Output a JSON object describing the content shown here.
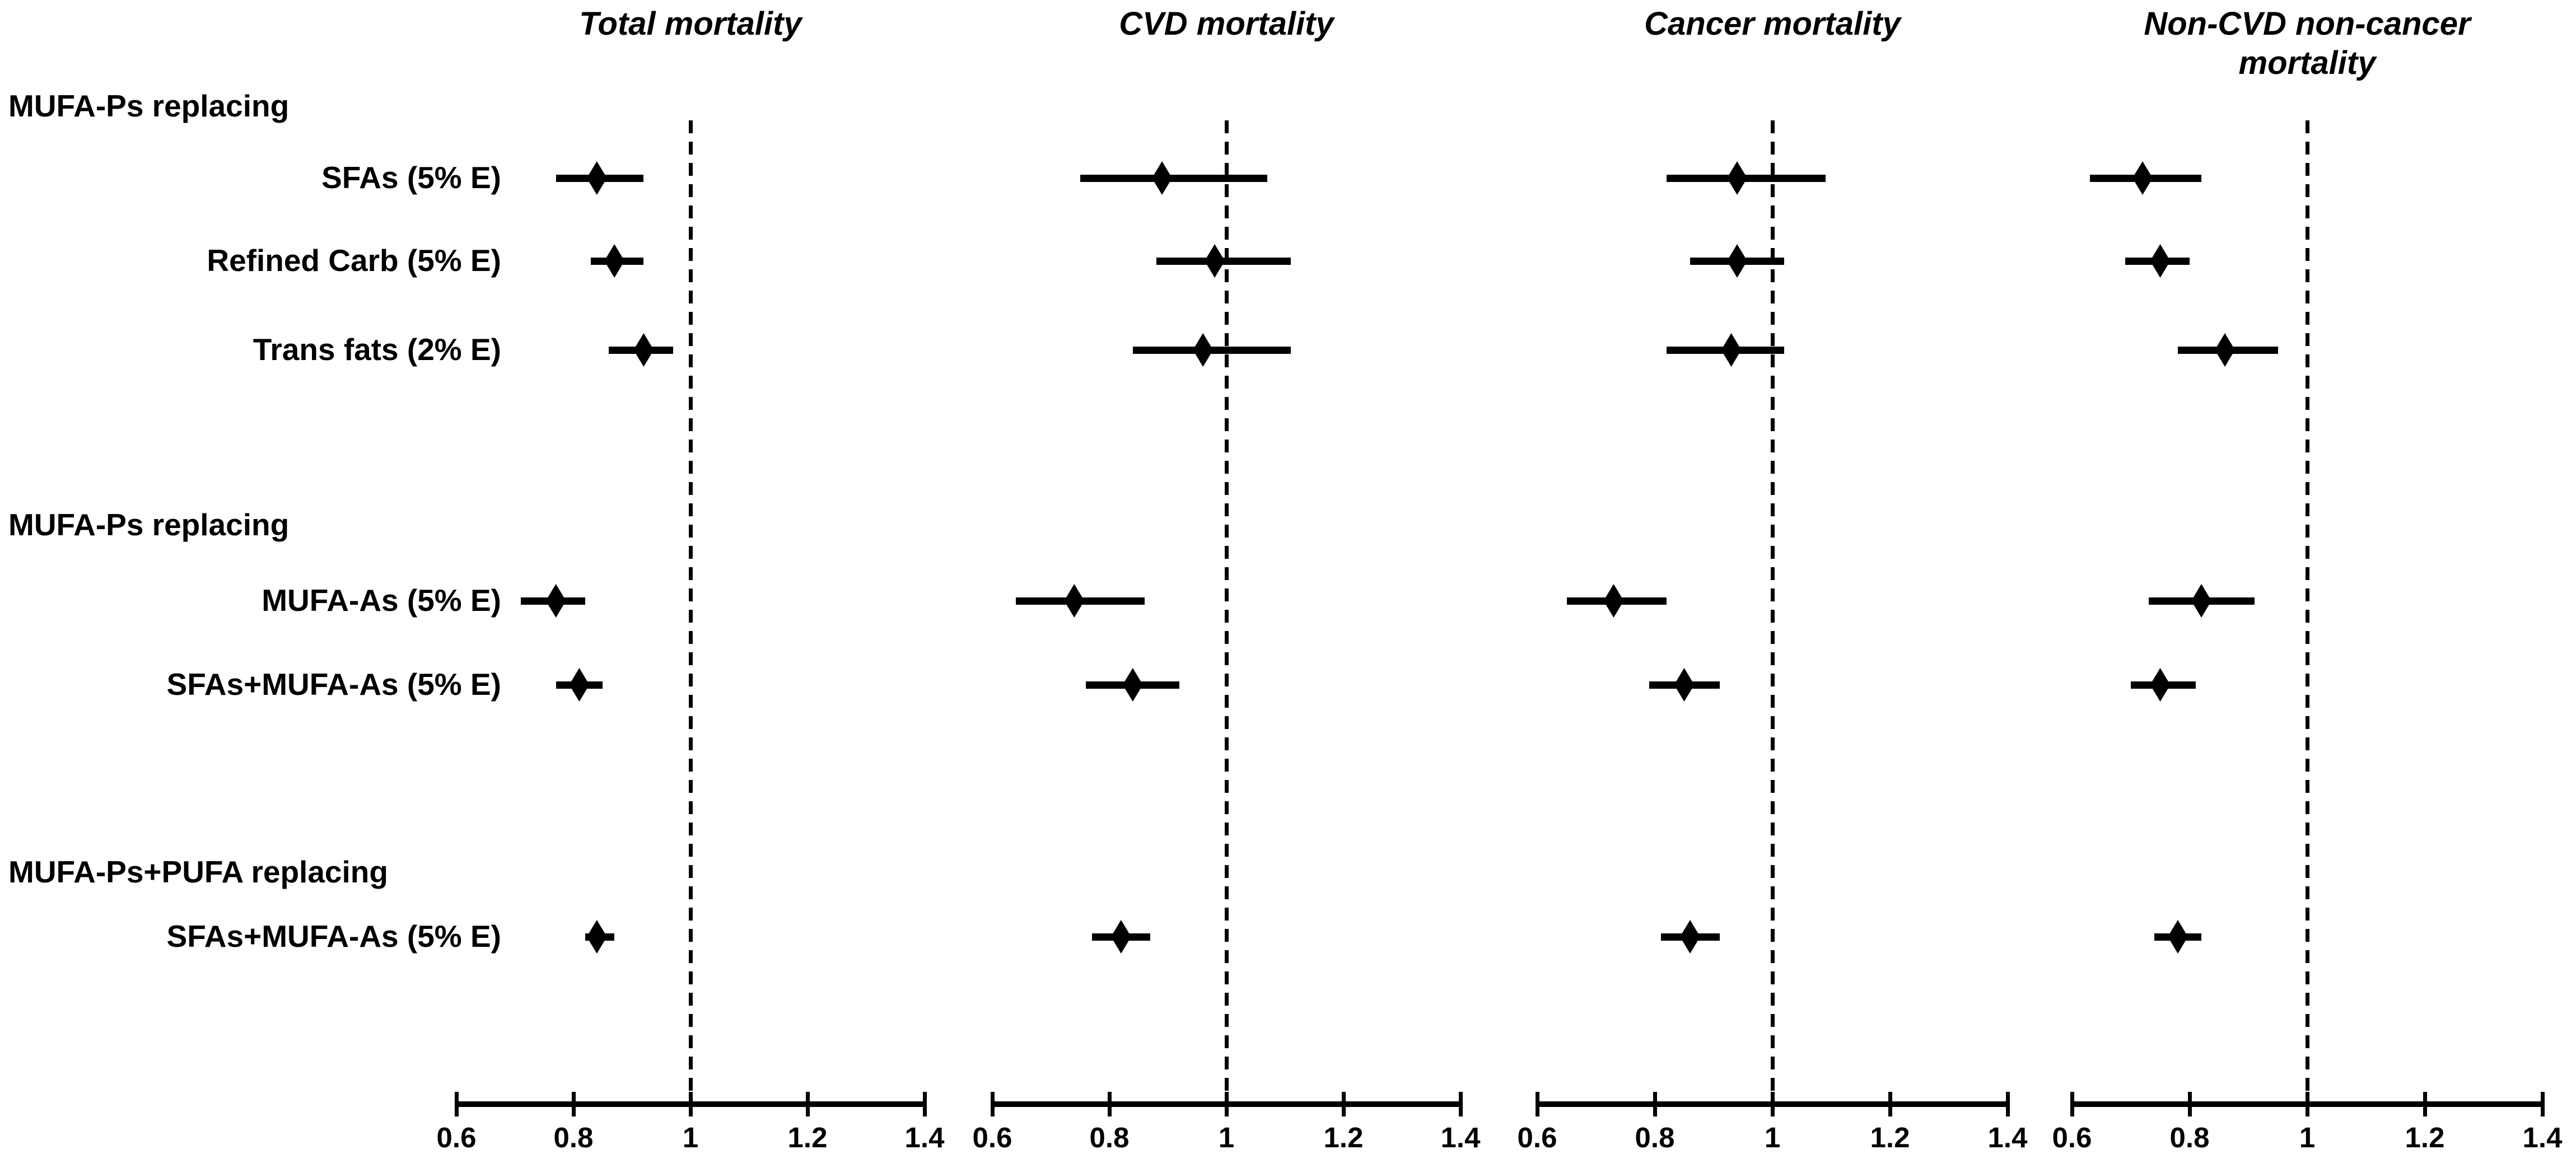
{
  "colors": {
    "foreground": "#000000",
    "background": "#ffffff"
  },
  "chart_data": {
    "type": "forest",
    "x_axis": {
      "min": 0.6,
      "max": 1.4,
      "tick_values": [
        0.6,
        0.8,
        1,
        1.2,
        1.4
      ],
      "tick_labels": [
        "0.6",
        "0.8",
        "1",
        "1.2",
        "1.4"
      ],
      "reference_line": 1,
      "grid": false
    },
    "panels": [
      {
        "key": "total",
        "title": "Total mortality"
      },
      {
        "key": "cvd",
        "title": "CVD mortality"
      },
      {
        "key": "cancer",
        "title": "Cancer mortality"
      },
      {
        "key": "noncvd",
        "title": "Non-CVD non-cancer\nmortality"
      }
    ],
    "groups": [
      {
        "header": "MUFA-Ps replacing",
        "rows": [
          {
            "label": "SFAs (5% E)",
            "total": {
              "est": 0.84,
              "lo": 0.77,
              "hi": 0.92
            },
            "cvd": {
              "est": 0.89,
              "lo": 0.75,
              "hi": 1.07
            },
            "cancer": {
              "est": 0.94,
              "lo": 0.82,
              "hi": 1.09
            },
            "noncvd": {
              "est": 0.72,
              "lo": 0.63,
              "hi": 0.82
            }
          },
          {
            "label": "Refined Carb (5% E)",
            "total": {
              "est": 0.87,
              "lo": 0.83,
              "hi": 0.92
            },
            "cvd": {
              "est": 0.98,
              "lo": 0.88,
              "hi": 1.11
            },
            "cancer": {
              "est": 0.94,
              "lo": 0.86,
              "hi": 1.02
            },
            "noncvd": {
              "est": 0.75,
              "lo": 0.69,
              "hi": 0.8
            }
          },
          {
            "label": "Trans fats (2% E)",
            "total": {
              "est": 0.92,
              "lo": 0.86,
              "hi": 0.97
            },
            "cvd": {
              "est": 0.96,
              "lo": 0.84,
              "hi": 1.11
            },
            "cancer": {
              "est": 0.93,
              "lo": 0.82,
              "hi": 1.02
            },
            "noncvd": {
              "est": 0.86,
              "lo": 0.78,
              "hi": 0.95
            }
          }
        ]
      },
      {
        "header": "MUFA-Ps replacing",
        "rows": [
          {
            "label": "MUFA-As (5% E)",
            "total": {
              "est": 0.77,
              "lo": 0.71,
              "hi": 0.82
            },
            "cvd": {
              "est": 0.74,
              "lo": 0.64,
              "hi": 0.86
            },
            "cancer": {
              "est": 0.73,
              "lo": 0.65,
              "hi": 0.82
            },
            "noncvd": {
              "est": 0.82,
              "lo": 0.73,
              "hi": 0.91
            }
          },
          {
            "label": "SFAs+MUFA-As (5% E)",
            "total": {
              "est": 0.81,
              "lo": 0.77,
              "hi": 0.85
            },
            "cvd": {
              "est": 0.84,
              "lo": 0.76,
              "hi": 0.92
            },
            "cancer": {
              "est": 0.85,
              "lo": 0.79,
              "hi": 0.91
            },
            "noncvd": {
              "est": 0.75,
              "lo": 0.7,
              "hi": 0.81
            }
          }
        ]
      },
      {
        "header": "MUFA-Ps+PUFA replacing",
        "rows": [
          {
            "label": "SFAs+MUFA-As (5% E)",
            "total": {
              "est": 0.84,
              "lo": 0.82,
              "hi": 0.87
            },
            "cvd": {
              "est": 0.82,
              "lo": 0.77,
              "hi": 0.87
            },
            "cancer": {
              "est": 0.86,
              "lo": 0.81,
              "hi": 0.91
            },
            "noncvd": {
              "est": 0.78,
              "lo": 0.74,
              "hi": 0.82
            }
          }
        ]
      }
    ]
  }
}
